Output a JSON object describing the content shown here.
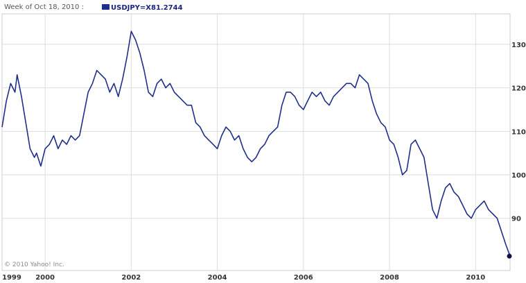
{
  "header": {
    "period_label": "Week of Oct 18, 2010 :",
    "symbol_label": "USDJPY=X",
    "last_value": "81.2744",
    "series_color": "#1f2e8a"
  },
  "copyright": "© 2010 Yahoo! Inc.",
  "chart_data": {
    "type": "line",
    "title": "",
    "xlabel": "",
    "ylabel": "",
    "x_tick_labels": [
      "1999",
      "2000",
      "2002",
      "2004",
      "2006",
      "2008",
      "2010"
    ],
    "y_tick_labels": [
      "90",
      "100",
      "110",
      "120",
      "130"
    ],
    "xlim": [
      1999.0,
      2010.8
    ],
    "ylim": [
      78,
      137
    ],
    "grid": true,
    "series": [
      {
        "name": "USDJPY=X",
        "color": "#1f2e8a",
        "x": [
          1999.0,
          1999.1,
          1999.2,
          1999.3,
          1999.35,
          1999.45,
          1999.55,
          1999.65,
          1999.75,
          1999.8,
          1999.9,
          2000.0,
          2000.1,
          2000.2,
          2000.3,
          2000.4,
          2000.5,
          2000.6,
          2000.7,
          2000.8,
          2000.9,
          2001.0,
          2001.1,
          2001.2,
          2001.3,
          2001.4,
          2001.5,
          2001.6,
          2001.7,
          2001.8,
          2001.9,
          2002.0,
          2002.1,
          2002.2,
          2002.3,
          2002.4,
          2002.5,
          2002.6,
          2002.7,
          2002.8,
          2002.9,
          2003.0,
          2003.1,
          2003.2,
          2003.3,
          2003.4,
          2003.5,
          2003.6,
          2003.7,
          2003.8,
          2003.9,
          2004.0,
          2004.1,
          2004.2,
          2004.3,
          2004.4,
          2004.5,
          2004.6,
          2004.7,
          2004.8,
          2004.9,
          2005.0,
          2005.1,
          2005.2,
          2005.3,
          2005.4,
          2005.5,
          2005.6,
          2005.7,
          2005.8,
          2005.9,
          2006.0,
          2006.1,
          2006.2,
          2006.3,
          2006.4,
          2006.5,
          2006.6,
          2006.7,
          2006.8,
          2006.9,
          2007.0,
          2007.1,
          2007.2,
          2007.3,
          2007.4,
          2007.5,
          2007.6,
          2007.7,
          2007.8,
          2007.9,
          2008.0,
          2008.1,
          2008.2,
          2008.3,
          2008.4,
          2008.5,
          2008.6,
          2008.7,
          2008.8,
          2008.9,
          2009.0,
          2009.1,
          2009.2,
          2009.3,
          2009.4,
          2009.5,
          2009.6,
          2009.7,
          2009.8,
          2009.9,
          2010.0,
          2010.1,
          2010.2,
          2010.3,
          2010.4,
          2010.5,
          2010.6,
          2010.7,
          2010.8
        ],
        "values": [
          111,
          117,
          121,
          119,
          123,
          118,
          112,
          106,
          104,
          105,
          102,
          106,
          107,
          109,
          106,
          108,
          107,
          109,
          108,
          109,
          114,
          119,
          121,
          124,
          123,
          122,
          119,
          121,
          118,
          122,
          127,
          133,
          131,
          128,
          124,
          119,
          118,
          121,
          122,
          120,
          121,
          119,
          118,
          117,
          116,
          116,
          112,
          111,
          109,
          108,
          107,
          106,
          109,
          111,
          110,
          108,
          109,
          106,
          104,
          103,
          104,
          106,
          107,
          109,
          110,
          111,
          116,
          119,
          119,
          118,
          116,
          115,
          117,
          119,
          118,
          119,
          117,
          116,
          118,
          119,
          120,
          121,
          121,
          120,
          123,
          122,
          121,
          117,
          114,
          112,
          111,
          108,
          107,
          104,
          100,
          101,
          107,
          108,
          106,
          104,
          98,
          92,
          90,
          94,
          97,
          98,
          96,
          95,
          93,
          91,
          90,
          92,
          93,
          94,
          92,
          91,
          90,
          87,
          84,
          81.3
        ]
      }
    ]
  }
}
